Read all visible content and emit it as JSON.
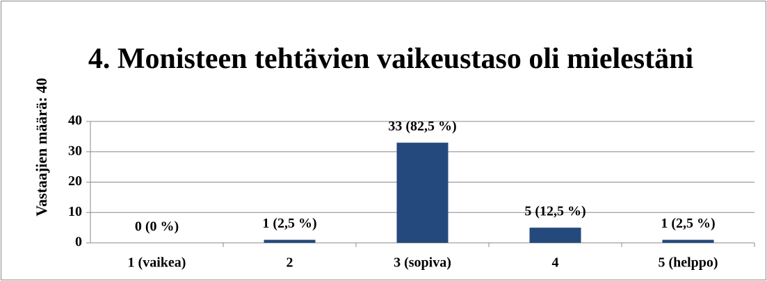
{
  "chart_data": {
    "type": "bar",
    "title": "4. Monisteen tehtävien vaikeustaso oli mielestäni",
    "y_label": "Vastaajien määrä: 40",
    "categories": [
      "1 (vaikea)",
      "2",
      "3 (sopiva)",
      "4",
      "5 (helppo)"
    ],
    "values": [
      0,
      1,
      33,
      5,
      1
    ],
    "value_labels": [
      "0 (0 %)",
      "1 (2,5 %)",
      "33 (82,5 %)",
      "5 (12,5 %)",
      "1 (2,5 %)"
    ],
    "color": "#244a7d",
    "ylim": [
      0,
      40
    ],
    "yticks": [
      0,
      10,
      20,
      30,
      40
    ],
    "grid": true
  }
}
